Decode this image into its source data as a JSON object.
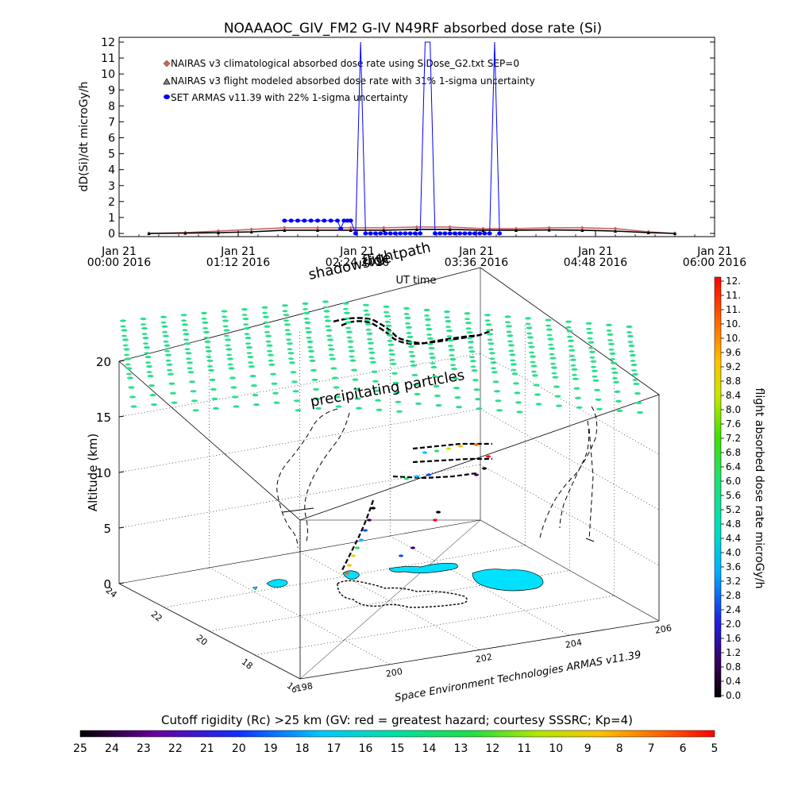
{
  "chart_data": [
    {
      "type": "line",
      "title": "NOAAAOC_GIV_FM2 G-IV   N49RF  absorbed dose rate (Si)",
      "ylabel": "dD(Si)/dt microGy/h",
      "xlabel": "UT time",
      "ylim": [
        0,
        12
      ],
      "yticks": [
        0,
        1,
        2,
        3,
        4,
        5,
        6,
        7,
        8,
        9,
        10,
        11,
        12
      ],
      "xticks": [
        {
          "date": "Jan 21",
          "time": "00:00 2016"
        },
        {
          "date": "Jan 21",
          "time": "01:12 2016"
        },
        {
          "date": "Jan 21",
          "time": "02:24 2016"
        },
        {
          "date": "Jan 21",
          "time": "03:36 2016"
        },
        {
          "date": "Jan 21",
          "time": "04:48 2016"
        },
        {
          "date": "Jan 21",
          "time": "06:00 2016"
        }
      ],
      "xlim_minutes": [
        0,
        360
      ],
      "legend": [
        {
          "label": "NAIRAS v3 climatological absorbed dose rate using SiDose_G2.txt SEP=0",
          "color": "#c86464",
          "marker": "diamond"
        },
        {
          "label": "NAIRAS v3 flight modeled absorbed dose rate with 31% 1-sigma uncertainty",
          "color": "#000000",
          "marker": "triangle"
        },
        {
          "label": "SET ARMAS v11.39 with 22% 1-sigma uncertainty",
          "color": "#0000ff",
          "marker": "circle"
        }
      ],
      "series": [
        {
          "name": "NAIRAS v3 climatological absorbed dose rate using SiDose_G2.txt SEP=0",
          "x_minutes": [
            18,
            40,
            60,
            80,
            100,
            120,
            140,
            160,
            180,
            200,
            220,
            240,
            260,
            280,
            300,
            320,
            336
          ],
          "values": [
            0.0,
            0.05,
            0.15,
            0.25,
            0.35,
            0.35,
            0.35,
            0.35,
            0.4,
            0.4,
            0.3,
            0.3,
            0.35,
            0.35,
            0.3,
            0.1,
            0.0
          ]
        },
        {
          "name": "NAIRAS v3 flight modeled absorbed dose rate with 31% 1-sigma uncertainty",
          "x_minutes": [
            18,
            40,
            60,
            80,
            100,
            120,
            140,
            160,
            180,
            200,
            220,
            240,
            260,
            280,
            300,
            320,
            336
          ],
          "values": [
            0.0,
            0.02,
            0.05,
            0.1,
            0.2,
            0.2,
            0.2,
            0.2,
            0.25,
            0.25,
            0.2,
            0.2,
            0.22,
            0.2,
            0.15,
            0.05,
            0.0
          ]
        },
        {
          "name": "SET ARMAS v11.39 with 22% 1-sigma uncertainty",
          "x_minutes": [
            100,
            104,
            108,
            112,
            116,
            120,
            124,
            128,
            132,
            134,
            136,
            138,
            140,
            143,
            146,
            149,
            152,
            155,
            158,
            161,
            164,
            167,
            170,
            173,
            176,
            179,
            182,
            185,
            188,
            191,
            194,
            197,
            200,
            203,
            206,
            209,
            212,
            215,
            218,
            221,
            224,
            227,
            230
          ],
          "values": [
            0.8,
            0.8,
            0.8,
            0.8,
            0.8,
            0.8,
            0.8,
            0.8,
            0.8,
            0.3,
            0.8,
            0.8,
            0.8,
            0,
            12,
            0,
            0,
            0,
            0,
            0,
            0,
            0,
            0,
            0,
            0,
            0,
            0,
            12,
            12,
            0,
            0,
            0,
            0,
            0,
            0,
            0,
            0,
            0,
            0,
            0,
            0,
            12,
            0
          ]
        }
      ]
    },
    {
      "type": "scatter",
      "title": "",
      "zlabel": "Altitude (km)",
      "zticks": [
        0,
        5,
        10,
        15,
        20
      ],
      "lon_ticks": [
        198,
        200,
        202,
        204,
        206
      ],
      "lat_ticks": [
        16,
        18,
        20,
        22,
        24
      ],
      "annotations": [
        "shadowside",
        "flightpath",
        "precipitating particles"
      ],
      "credit": "Space Environment Technologies ARMAS v11.39"
    }
  ],
  "colorbar_right": {
    "label": "flight absorbed dose rate microGy/h",
    "ticks": [
      "0.0",
      "0.4",
      "0.8",
      "1.2",
      "1.6",
      "2.0",
      "2.4",
      "2.8",
      "3.2",
      "3.6",
      "4.0",
      "4.4",
      "4.8",
      "5.2",
      "5.6",
      "6.0",
      "6.4",
      "6.8",
      "7.2",
      "7.6",
      "8.0",
      "8.4",
      "8.8",
      "9.2",
      "9.6",
      "10.",
      "10.",
      "11.",
      "11.",
      "12."
    ]
  },
  "colorbar_bottom": {
    "label": "Cutoff rigidity (Rc) >25 km (GV: red = greatest hazard; courtesy SSSRC; Kp=4)",
    "ticks": [
      "25",
      "24",
      "23",
      "22",
      "21",
      "20",
      "19",
      "18",
      "17",
      "16",
      "15",
      "14",
      "13",
      "12",
      "11",
      "10",
      "9",
      "8",
      "7",
      "6",
      "5"
    ]
  },
  "colors": {
    "arrows": "#28e08c",
    "ground_track": "#00e0ff",
    "nairas_clim": "#c86464",
    "armas": "#0000ff"
  }
}
